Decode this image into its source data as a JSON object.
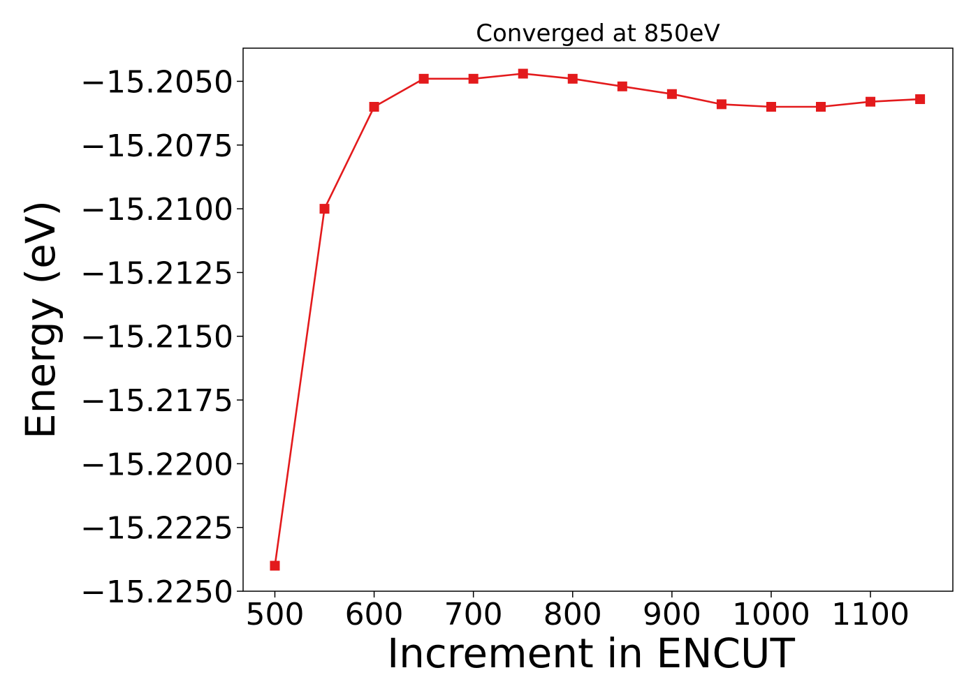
{
  "chart_data": {
    "type": "line",
    "title": "Converged at 850eV",
    "xlabel": "Increment in ENCUT",
    "ylabel": "Energy (eV)",
    "xlim": [
      468,
      1183
    ],
    "ylim": [
      -15.225,
      -15.2037
    ],
    "x_ticks": [
      500,
      600,
      700,
      800,
      900,
      1000,
      1100
    ],
    "x_tick_labels": [
      "500",
      "600",
      "700",
      "800",
      "900",
      "1000",
      "1100"
    ],
    "y_ticks": [
      -15.205,
      -15.2075,
      -15.21,
      -15.2125,
      -15.215,
      -15.2175,
      -15.22,
      -15.2225,
      -15.225
    ],
    "y_tick_labels": [
      "−15.2050",
      "−15.2075",
      "−15.2100",
      "−15.2125",
      "−15.2150",
      "−15.2175",
      "−15.2200",
      "−15.2225",
      "−15.2250"
    ],
    "grid": false,
    "series": [
      {
        "color": "#e31a1c",
        "marker": "square",
        "x": [
          500,
          550,
          600,
          650,
          700,
          750,
          800,
          850,
          900,
          950,
          1000,
          1050,
          1100,
          1150
        ],
        "y": [
          -15.224,
          -15.21,
          -15.206,
          -15.2049,
          -15.2049,
          -15.2047,
          -15.2049,
          -15.2052,
          -15.2055,
          -15.2059,
          -15.206,
          -15.206,
          -15.2058,
          -15.2057
        ]
      }
    ]
  }
}
